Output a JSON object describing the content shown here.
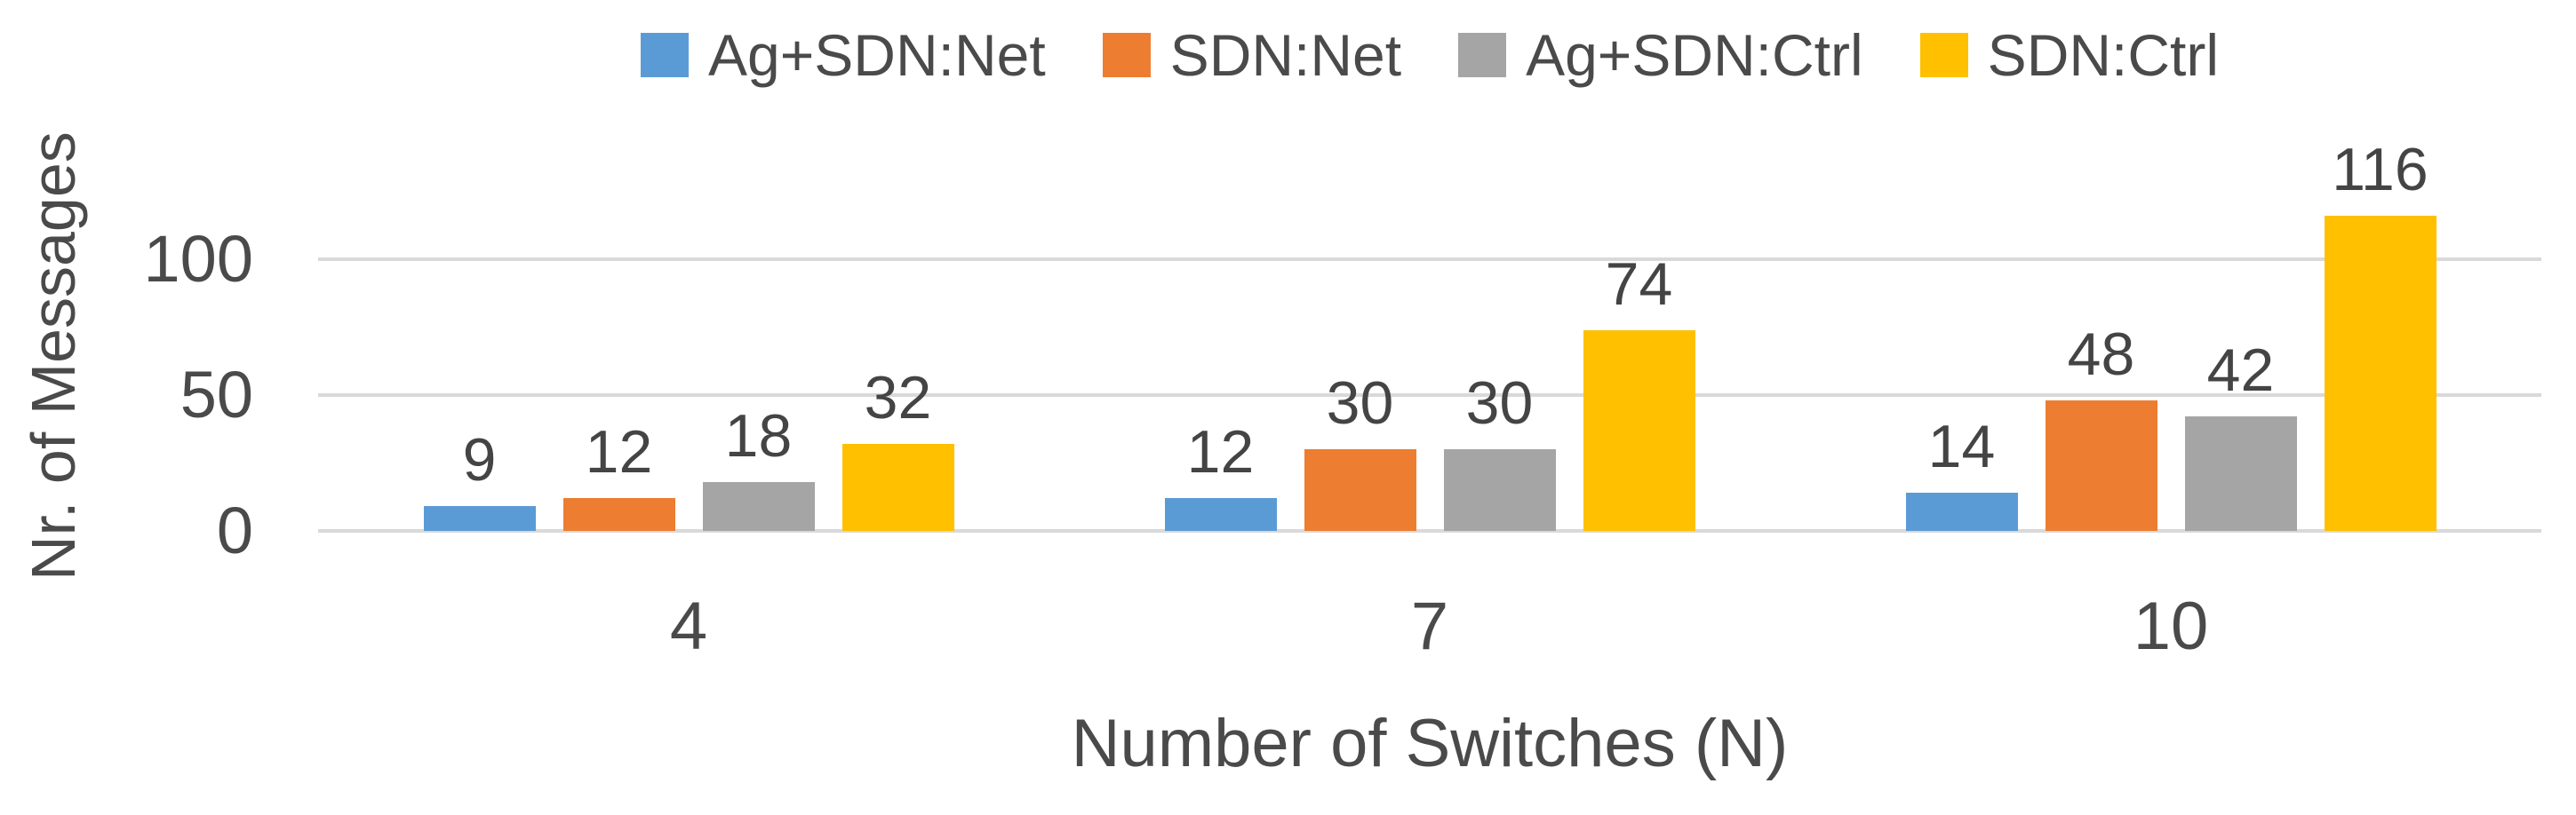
{
  "chart_data": {
    "type": "bar",
    "title": "",
    "categories": [
      "4",
      "7",
      "10"
    ],
    "series": [
      {
        "name": "Ag+SDN:Net",
        "color": "#5B9BD5",
        "values": [
          9,
          12,
          14
        ]
      },
      {
        "name": "SDN:Net",
        "color": "#ED7D31",
        "values": [
          12,
          30,
          48
        ]
      },
      {
        "name": "Ag+SDN:Ctrl",
        "color": "#A5A5A5",
        "values": [
          18,
          30,
          42
        ]
      },
      {
        "name": "SDN:Ctrl",
        "color": "#FFC000",
        "values": [
          32,
          74,
          116
        ]
      }
    ],
    "xlabel": "Number of Switches (N)",
    "ylabel": "Nr. of Messages",
    "yticks": [
      0,
      50,
      100
    ],
    "ylim": [
      0,
      120
    ],
    "grid": true,
    "legend_position": "top",
    "data_labels_shown": true,
    "per_category_values": {
      "4": [
        9,
        12,
        18,
        32
      ],
      "7": [
        12,
        30,
        30,
        74
      ],
      "10": [
        14,
        48,
        42,
        116
      ]
    }
  },
  "colors": {
    "background": "#FFFFFF",
    "text": "#4A4A4A",
    "gridline": "#D9D9D9",
    "series_blue": "#5B9BD5",
    "series_orange": "#ED7D31",
    "series_gray": "#A5A5A5",
    "series_yellow": "#FFC000"
  }
}
